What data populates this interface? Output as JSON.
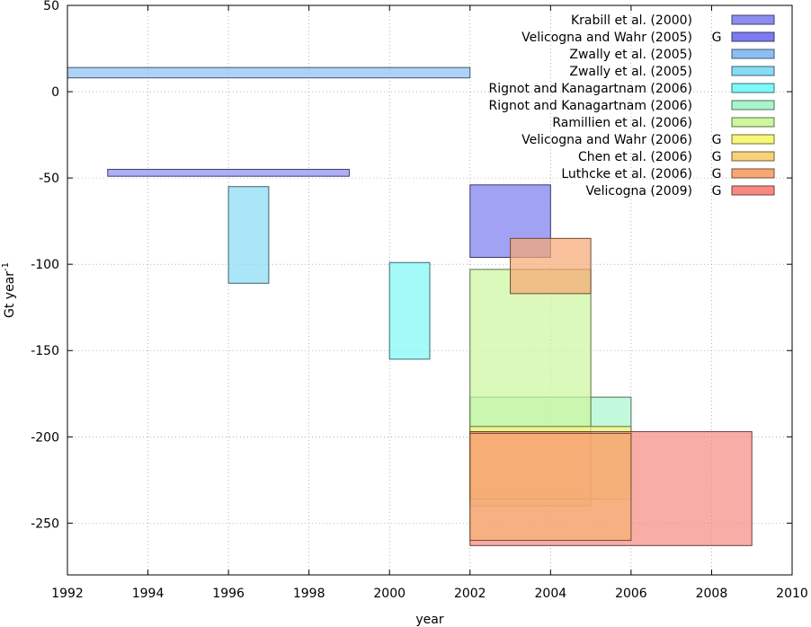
{
  "chart_data": {
    "type": "bar",
    "title": "",
    "xlabel": "year",
    "ylabel": "Gt year",
    "ylabel_sup": "-1",
    "xlim": [
      1992,
      2010
    ],
    "ylim": [
      -280,
      50
    ],
    "xticks": [
      "1992",
      "1994",
      "1996",
      "1998",
      "2000",
      "2002",
      "2004",
      "2006",
      "2008",
      "2010"
    ],
    "yticks": [
      "50",
      "0",
      "-50",
      "-100",
      "-150",
      "-200",
      "-250"
    ],
    "grid": true,
    "legend_position": "top-right",
    "series": [
      {
        "name": "Krabill et al. (2000)",
        "tag": "",
        "color": "#8c8cf0",
        "x": [
          1993,
          1999
        ],
        "y": [
          -49,
          -45
        ]
      },
      {
        "name": "Velicogna and Wahr (2005)",
        "tag": "G",
        "color": "#7b7bef",
        "x": [
          2002,
          2004
        ],
        "y": [
          -96,
          -54
        ]
      },
      {
        "name": "Zwally et al. (2005)",
        "tag": "",
        "color": "#8cbef5",
        "x": [
          1992,
          2002
        ],
        "y": [
          8,
          14
        ]
      },
      {
        "name": "Zwally et al. (2005)",
        "tag": "",
        "color": "#87dcf5",
        "x": [
          1996,
          1997
        ],
        "y": [
          -111,
          -55
        ]
      },
      {
        "name": "Rignot and Kanagartnam (2006)",
        "tag": "",
        "color": "#7ef7f7",
        "x": [
          2000,
          2001
        ],
        "y": [
          -155,
          -99
        ]
      },
      {
        "name": "Rignot and Kanagartnam (2006)",
        "tag": "",
        "color": "#a8f5cc",
        "x": [
          2002,
          2006
        ],
        "y": [
          -233,
          -177
        ]
      },
      {
        "name": "Ramillien et al. (2006)",
        "tag": "",
        "color": "#ccf79c",
        "x": [
          2002,
          2005
        ],
        "y": [
          -240,
          -103
        ]
      },
      {
        "name": "Velicogna and Wahr (2006)",
        "tag": "G",
        "color": "#f7f77a",
        "x": [
          2002,
          2006
        ],
        "y": [
          -236,
          -194
        ]
      },
      {
        "name": "Chen et al. (2006)",
        "tag": "G",
        "color": "#f7d27a",
        "x": [
          2002,
          2005
        ],
        "y": [
          -236,
          -197
        ]
      },
      {
        "name": "Luthcke et al. (2006)",
        "tag": "G",
        "color": "#f7a872",
        "x": [
          2003,
          2005
        ],
        "y": [
          -117,
          -85
        ]
      },
      {
        "name": "Velicogna (2009)",
        "tag": "G",
        "color": "#f78a82",
        "x": [
          2002,
          2009
        ],
        "y": [
          -263,
          -197
        ]
      },
      {
        "name": "",
        "tag": "",
        "color": "#f7b072",
        "x": [
          2002,
          2006
        ],
        "y": [
          -260,
          -198
        ]
      }
    ]
  }
}
